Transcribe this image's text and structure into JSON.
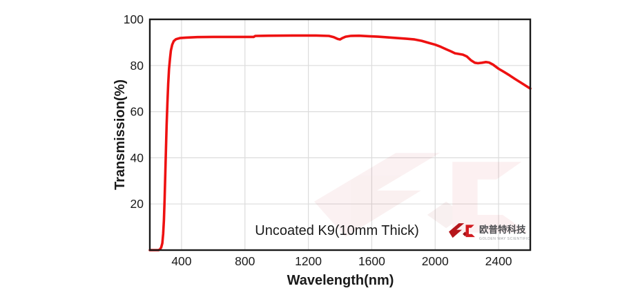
{
  "chart": {
    "annotation": "Uncoated K9(10mm Thick)",
    "x_axis_title": "Wavelength(nm)",
    "y_axis_title": "Transmission(%)"
  },
  "logo": {
    "cn_text": "欧普特科技",
    "en_text": "GOLDEN WAY SCIENTIFIC",
    "brand_red": "#c4161d"
  },
  "colors": {
    "curve": "#ee1111",
    "grid": "#dcdcdc",
    "border": "#1a1a1a",
    "watermark": "#c41a1f"
  },
  "chart_data": {
    "type": "line",
    "title": "",
    "xlabel": "Wavelength(nm)",
    "ylabel": "Transmission(%)",
    "xlim": [
      200,
      2600
    ],
    "ylim": [
      0,
      100
    ],
    "x_ticks": [
      400,
      800,
      1200,
      1600,
      2000,
      2400
    ],
    "y_ticks": [
      20,
      40,
      60,
      80,
      100
    ],
    "grid": true,
    "legend": "none",
    "annotation": "Uncoated K9(10mm Thick)",
    "series": [
      {
        "name": "Uncoated K9 (10mm Thick)",
        "color": "#ee1111",
        "points": [
          [
            200,
            0
          ],
          [
            255,
            0
          ],
          [
            264,
            0.3
          ],
          [
            272,
            1.2
          ],
          [
            279,
            3
          ],
          [
            284,
            7
          ],
          [
            289,
            13
          ],
          [
            293,
            22
          ],
          [
            297,
            32
          ],
          [
            301,
            42
          ],
          [
            306,
            54
          ],
          [
            311,
            64
          ],
          [
            316,
            72
          ],
          [
            321,
            78.5
          ],
          [
            327,
            83
          ],
          [
            333,
            86.5
          ],
          [
            341,
            89
          ],
          [
            351,
            90.6
          ],
          [
            365,
            91.4
          ],
          [
            390,
            91.9
          ],
          [
            430,
            92.1
          ],
          [
            500,
            92.3
          ],
          [
            600,
            92.4
          ],
          [
            720,
            92.4
          ],
          [
            855,
            92.4
          ],
          [
            865,
            92.8
          ],
          [
            950,
            92.9
          ],
          [
            1100,
            93
          ],
          [
            1250,
            93
          ],
          [
            1330,
            92.8
          ],
          [
            1360,
            92.3
          ],
          [
            1385,
            91.5
          ],
          [
            1400,
            91.3
          ],
          [
            1412,
            91.8
          ],
          [
            1435,
            92.5
          ],
          [
            1465,
            92.8
          ],
          [
            1520,
            92.9
          ],
          [
            1580,
            92.7
          ],
          [
            1640,
            92.5
          ],
          [
            1700,
            92.2
          ],
          [
            1760,
            91.9
          ],
          [
            1820,
            91.6
          ],
          [
            1870,
            91.3
          ],
          [
            1915,
            90.7
          ],
          [
            1960,
            89.8
          ],
          [
            2000,
            89
          ],
          [
            2035,
            88.1
          ],
          [
            2070,
            87
          ],
          [
            2100,
            86.1
          ],
          [
            2125,
            85.3
          ],
          [
            2150,
            85
          ],
          [
            2175,
            84.7
          ],
          [
            2200,
            83.9
          ],
          [
            2225,
            82.3
          ],
          [
            2250,
            81.2
          ],
          [
            2270,
            81
          ],
          [
            2295,
            81.2
          ],
          [
            2320,
            81.5
          ],
          [
            2340,
            81.3
          ],
          [
            2365,
            80.4
          ],
          [
            2400,
            78.6
          ],
          [
            2435,
            77.2
          ],
          [
            2470,
            75.7
          ],
          [
            2505,
            74.1
          ],
          [
            2540,
            72.6
          ],
          [
            2570,
            71.3
          ],
          [
            2600,
            70
          ]
        ]
      }
    ]
  }
}
